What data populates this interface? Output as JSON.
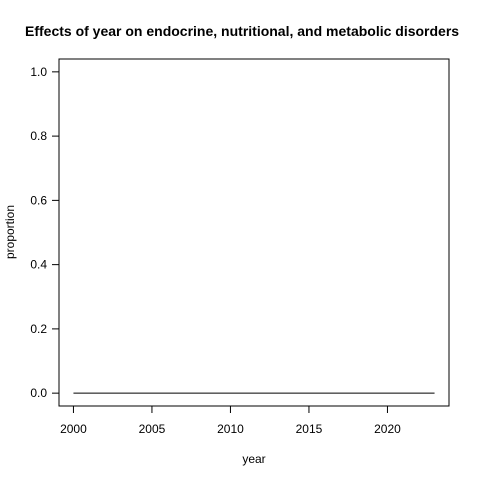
{
  "chart_data": {
    "type": "line",
    "title": "Effects of year on endocrine, nutritional, and metabolic disorders",
    "xlabel": "year",
    "ylabel": "proportion",
    "xlim": [
      2000,
      2023
    ],
    "ylim": [
      0,
      1
    ],
    "x_ticks": [
      2000,
      2005,
      2010,
      2015,
      2020
    ],
    "y_ticks": [
      0.0,
      0.2,
      0.4,
      0.6,
      0.8,
      1.0
    ],
    "x_tick_labels": [
      "2000",
      "2005",
      "2010",
      "2015",
      "2020"
    ],
    "y_tick_labels": [
      "0.0",
      "0.2",
      "0.4",
      "0.6",
      "0.8",
      "1.0"
    ],
    "grid": false,
    "series": [
      {
        "x": [
          2000,
          2001,
          2002,
          2003,
          2004,
          2005,
          2006,
          2007,
          2008,
          2009,
          2010,
          2011,
          2012,
          2013,
          2014,
          2015,
          2016,
          2017,
          2018,
          2019,
          2020,
          2021,
          2022,
          2023
        ],
        "values": [
          0,
          0,
          0,
          0,
          0,
          0,
          0,
          0,
          0,
          0,
          0,
          0,
          0,
          0,
          0,
          0,
          0,
          0,
          0,
          0,
          0,
          0,
          0,
          0
        ],
        "color": "#000000"
      }
    ]
  }
}
